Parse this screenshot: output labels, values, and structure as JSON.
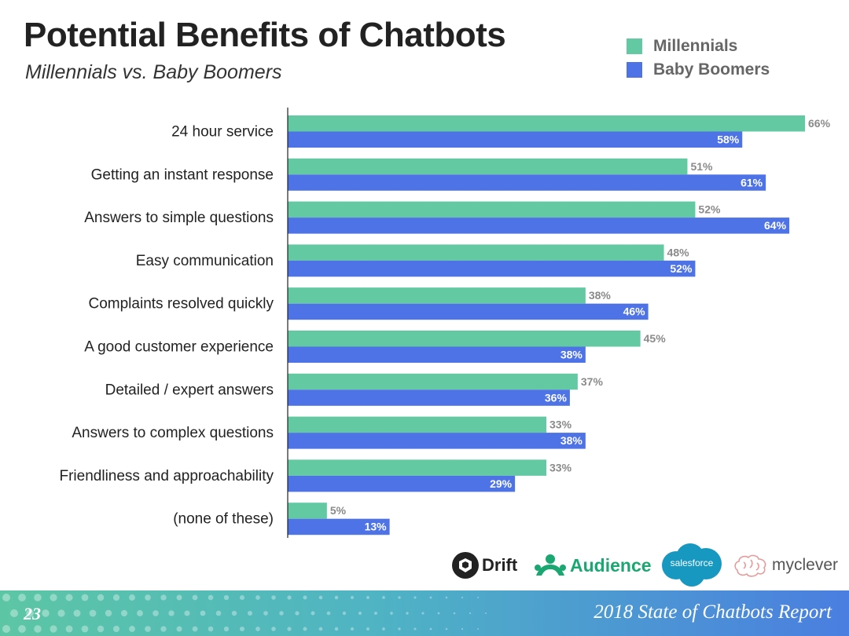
{
  "chart_data": {
    "type": "bar",
    "orientation": "horizontal",
    "title": "Potential Benefits of Chatbots",
    "subtitle": "Millennials vs. Baby Boomers",
    "legend_position": "top-right",
    "grid": false,
    "xlim": [
      0,
      70
    ],
    "value_format": "{v}%",
    "categories": [
      "24 hour service",
      "Getting an instant response",
      "Answers to simple questions",
      "Easy communication",
      "Complaints resolved quickly",
      "A good customer experience",
      "Detailed / expert answers",
      "Answers to complex questions",
      "Friendliness and approachability",
      "(none of these)"
    ],
    "series": [
      {
        "name": "Millennials",
        "color": "#62c9a3",
        "values": [
          66,
          51,
          52,
          48,
          38,
          45,
          37,
          33,
          33,
          5
        ]
      },
      {
        "name": "Baby Boomers",
        "color": "#4d73e6",
        "values": [
          58,
          61,
          64,
          52,
          46,
          38,
          36,
          38,
          29,
          13
        ]
      }
    ]
  },
  "logos": [
    {
      "name": "Drift",
      "icon": "drift-icon",
      "color": "#222222"
    },
    {
      "name": "Audience",
      "icon": "audience-icon",
      "color": "#1aa772"
    },
    {
      "name": "salesforce",
      "icon": "salesforce-cloud-icon",
      "color": "#1798c1"
    },
    {
      "name": "myclever",
      "icon": "brain-icon",
      "color": "#555555"
    }
  ],
  "footer": {
    "page_number": "23",
    "report_title": "2018 State of Chatbots Report"
  }
}
